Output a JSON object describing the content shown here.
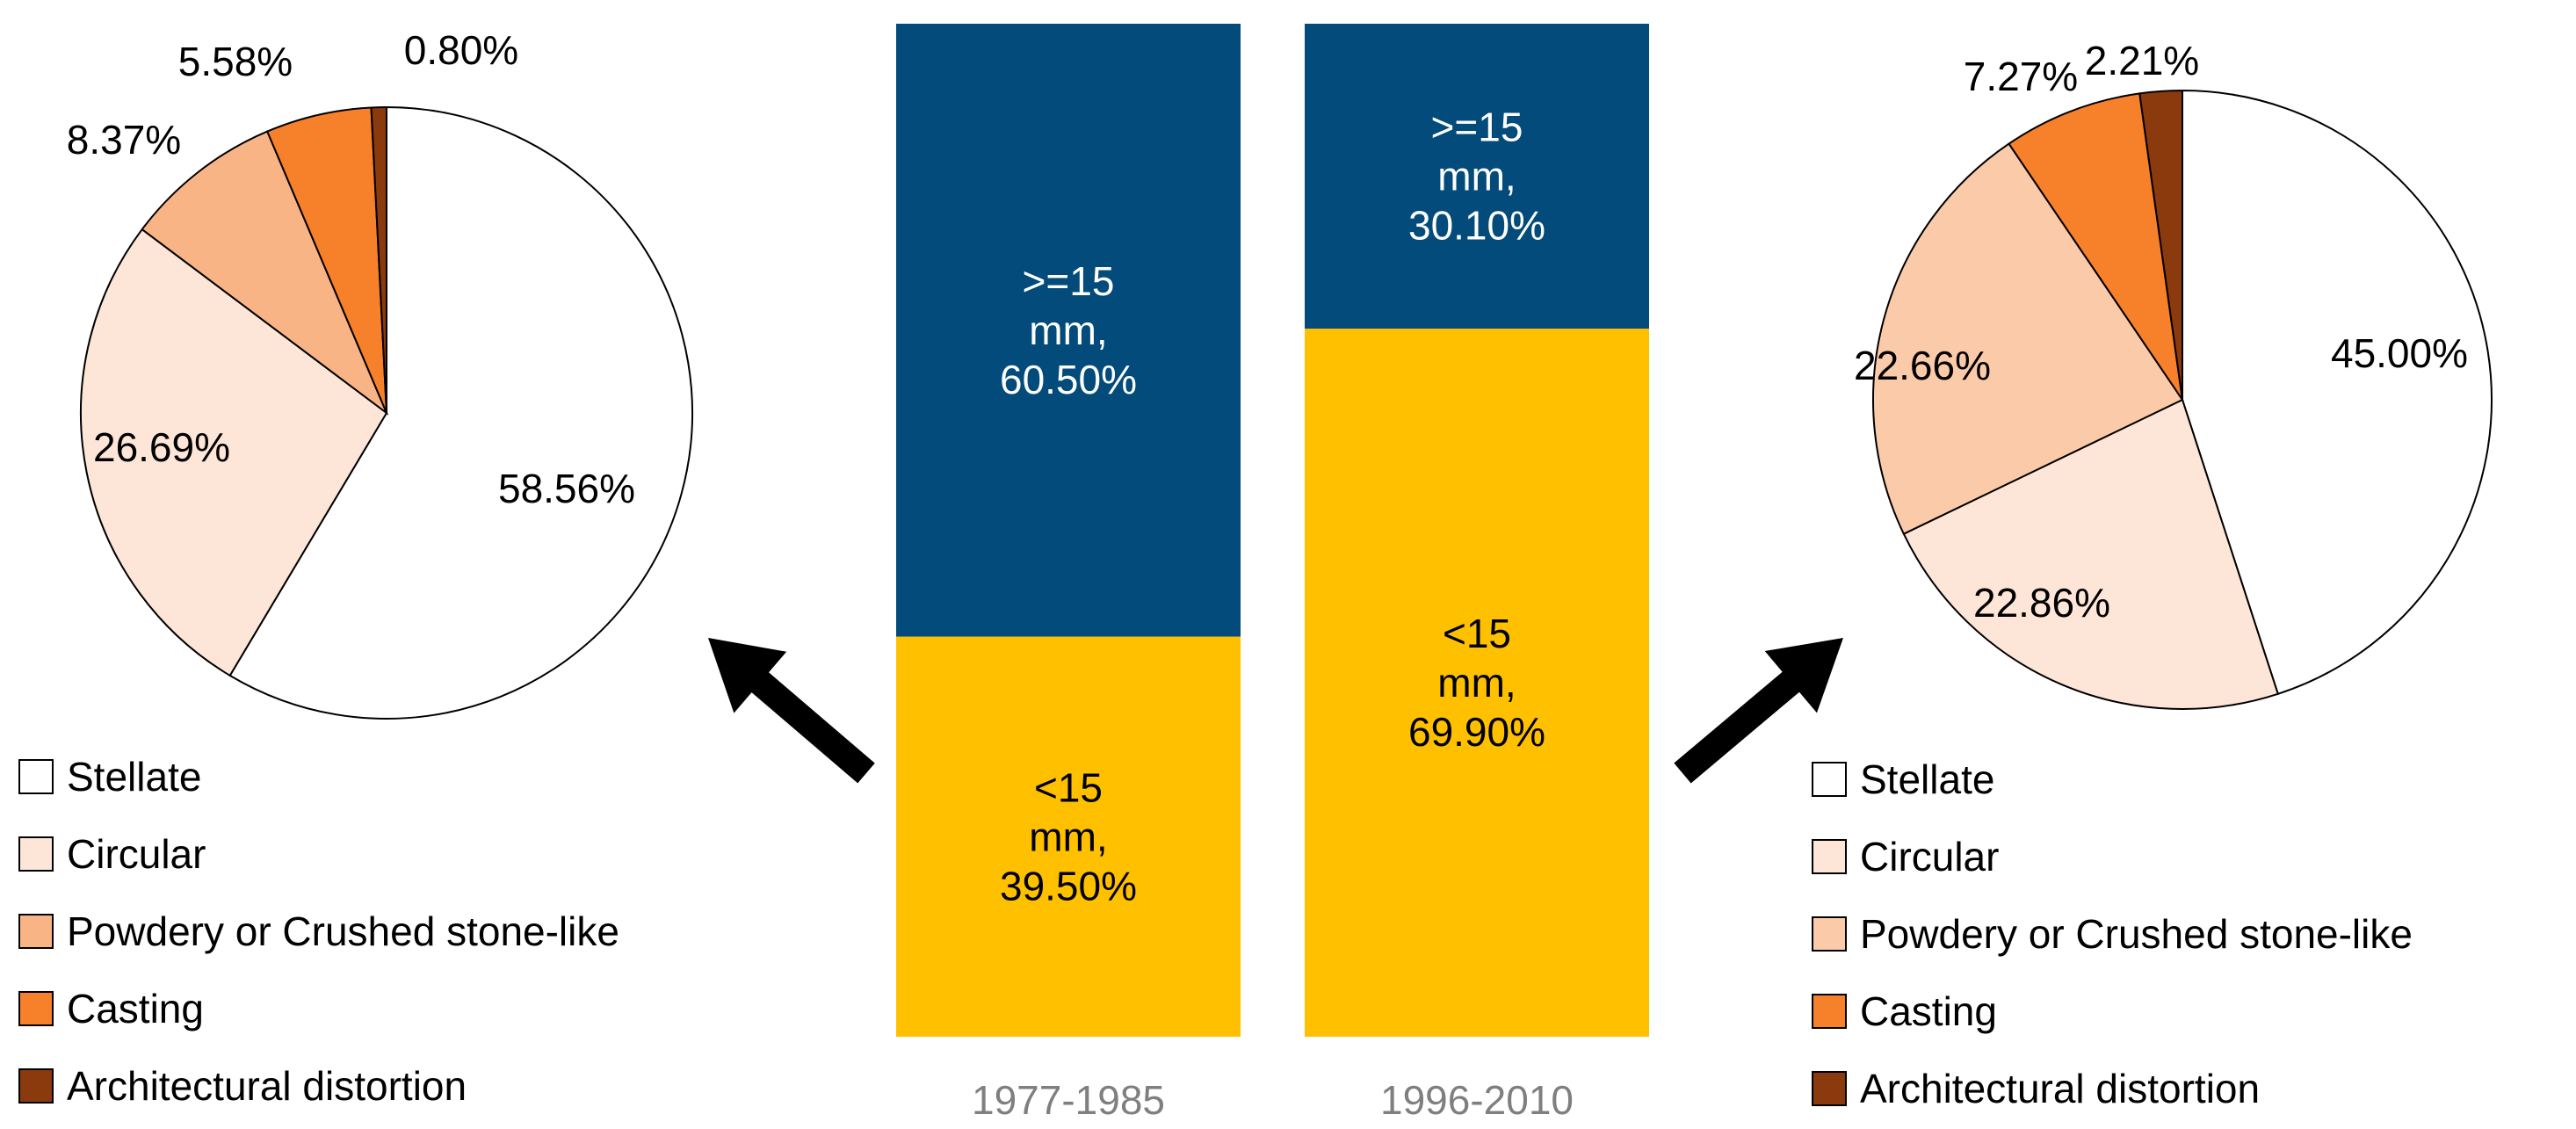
{
  "chart_data": [
    {
      "type": "pie",
      "categories": [
        "Stellate",
        "Circular",
        "Powdery or Crushed stone-like",
        "Casting",
        "Architectural distortion"
      ],
      "values": [
        58.56,
        26.69,
        8.37,
        5.58,
        0.8
      ],
      "labels": [
        "58.56%",
        "26.69%",
        "8.37%",
        "5.58%",
        "0.80%"
      ],
      "colors": [
        "#ffffff",
        "#fde5d7",
        "#f9b486",
        "#f7802a",
        "#8b3a0d"
      ],
      "legend": "bottom-left"
    },
    {
      "type": "bar",
      "stacked": true,
      "categories": [
        "1977-1985",
        "1996-2010"
      ],
      "series": [
        {
          "name": "<15 mm",
          "values": [
            39.5,
            69.9
          ],
          "color": "#ffc000",
          "labels": [
            [
              "<15",
              "mm,",
              "39.50%"
            ],
            [
              "<15",
              "mm,",
              "69.90%"
            ]
          ]
        },
        {
          "name": ">=15 mm",
          "values": [
            60.5,
            30.1
          ],
          "color": "#034b7a",
          "labels": [
            [
              ">=15",
              "mm,",
              "60.50%"
            ],
            [
              ">=15",
              "mm,",
              "30.10%"
            ]
          ]
        }
      ],
      "ylim": [
        0,
        100
      ]
    },
    {
      "type": "pie",
      "categories": [
        "Stellate",
        "Circular",
        "Powdery or Crushed stone-like",
        "Casting",
        "Architectural distortion"
      ],
      "values": [
        45.0,
        22.86,
        22.66,
        7.27,
        2.21
      ],
      "labels": [
        "45.00%",
        "22.86%",
        "22.66%",
        "7.27%",
        "2.21%"
      ],
      "colors": [
        "#ffffff",
        "#fde5d7",
        "#fbcaa9",
        "#f7802a",
        "#8b3a0d"
      ],
      "legend": "bottom-right"
    }
  ]
}
